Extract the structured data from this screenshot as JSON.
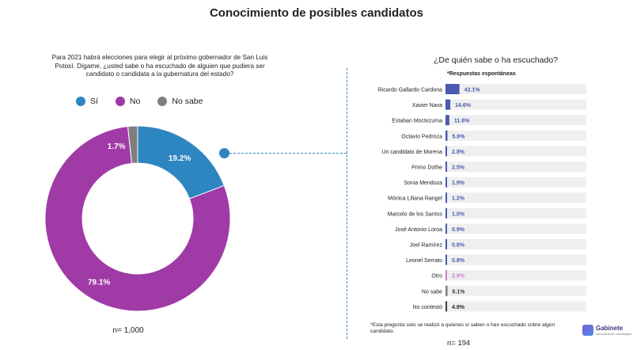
{
  "title": "Conocimiento de posibles candidatos",
  "left_panel": {
    "question": "Para 2021 habrá elecciones para elegir al próximo gobernador de San Luis Potosí. Dígame, ¿usted sabe o ha escuchado de alguien que pudiera ser candidato o candidata a la gubernatura del estado?",
    "legend": [
      {
        "label": "Sí",
        "color": "#2E86C1"
      },
      {
        "label": "No",
        "color": "#A03AA6"
      },
      {
        "label": "No sabe",
        "color": "#7F7F7F"
      }
    ],
    "n_label": "n= 1,000"
  },
  "right_panel": {
    "title": "¿De quién sabe o ha escuchado?",
    "subtitle": "*Respuestas espontáneas",
    "footnote": "*Esta pregunta solo se realizó a quienes sí saben o han escuchado sobre algún candidato.",
    "n_label": "n= 194"
  },
  "logo": {
    "name": "Gabinete",
    "tagline": "comunicación estratégica",
    "icon": "gabinete-logo-icon"
  },
  "chart_data": [
    {
      "type": "pie",
      "variant": "donut",
      "categories": [
        "Sí",
        "No",
        "No sabe"
      ],
      "values": [
        19.2,
        79.1,
        1.7
      ],
      "labels": [
        "19.2%",
        "79.1%",
        "1.7%"
      ],
      "colors": [
        "#2E86C1",
        "#A03AA6",
        "#7F7F7F"
      ]
    },
    {
      "type": "bar",
      "orientation": "horizontal",
      "categories": [
        "Ricardo Gallardo Cardona",
        "Xavier Nava",
        "Estaban Moctezuma",
        "Octavio Pedroza",
        "Un candidato de Morena",
        "Primo Dothe",
        "Sonia Mendoza",
        "Mónica Liliana Rangel",
        "Marcelo de los Santos",
        "José Antonio Loroa",
        "Joel Ramírez",
        "Leonel Serrato",
        "Otro",
        "No sabe",
        "No contestó"
      ],
      "values": [
        42.1,
        14.6,
        11.6,
        5.9,
        2.8,
        2.5,
        1.9,
        1.2,
        1.0,
        0.9,
        0.8,
        0.8,
        2.9,
        6.1,
        4.9
      ],
      "labels": [
        "42.1%",
        "14.6%",
        "11.6%",
        "5.9%",
        "2.8%",
        "2.5%",
        "1.9%",
        "1.2%",
        "1.0%",
        "0.9%",
        "0.8%",
        "0.8%",
        "2.9%",
        "6.1%",
        "4.9%"
      ],
      "colors": [
        "#4A5AB0",
        "#4A5AB0",
        "#4A5AB0",
        "#4A5AB0",
        "#4A5AB0",
        "#4A5AB0",
        "#4A5AB0",
        "#4A5AB0",
        "#4A5AB0",
        "#4A5AB0",
        "#4A5AB0",
        "#4A5AB0",
        "#C97FCC",
        "#7F7F7F",
        "#404040"
      ],
      "label_colors": [
        "#4A5AB0",
        "#4A5AB0",
        "#4A5AB0",
        "#4A5AB0",
        "#4A5AB0",
        "#4A5AB0",
        "#4A5AB0",
        "#4A5AB0",
        "#4A5AB0",
        "#4A5AB0",
        "#4A5AB0",
        "#4A5AB0",
        "#C97FCC",
        "#404040",
        "#222222"
      ],
      "track_color": "#EFEFEF",
      "xlim": [
        0,
        100
      ]
    }
  ]
}
